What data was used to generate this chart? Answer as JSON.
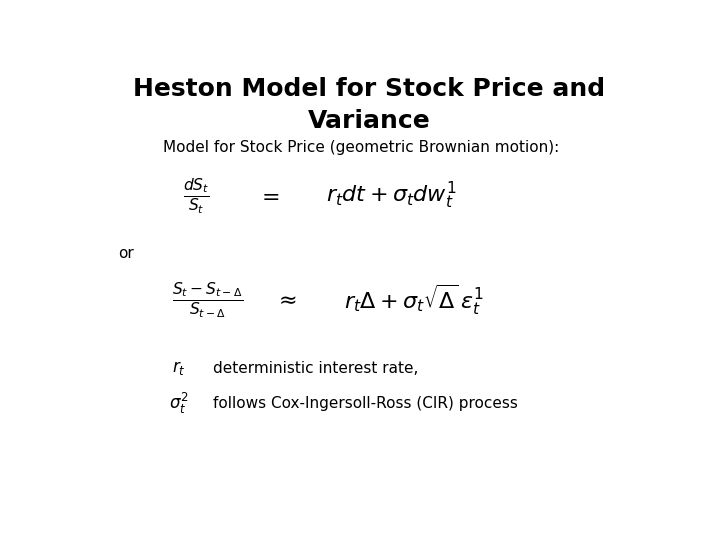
{
  "title": "Heston Model for Stock Price and\nVariance",
  "subtitle": "Model for Stock Price (geometric Brownian motion):",
  "or_text": "or",
  "label1_text": "deterministic interest rate,",
  "label2_text": "follows Cox-Ingersoll-Ross (CIR) process",
  "bg_color": "#ffffff",
  "text_color": "#000000",
  "title_fontsize": 18,
  "subtitle_fontsize": 11,
  "eq_fontsize": 14,
  "label_fontsize": 11,
  "or_fontsize": 11,
  "label_eq_fontsize": 12
}
